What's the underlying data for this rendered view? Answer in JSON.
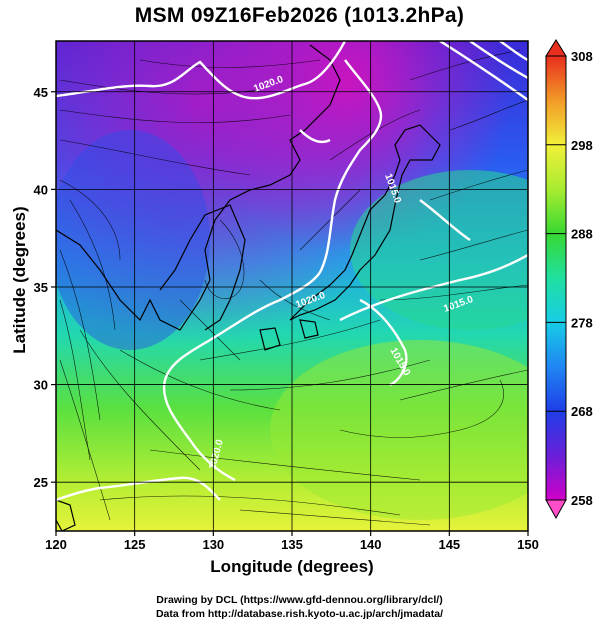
{
  "title": "MSM 09Z16Feb2026 (1013.2hPa)",
  "xlabel": "Longitude (degrees)",
  "ylabel": "Latitude  (degrees)",
  "credit_line1": "Drawing by DCL (https://www.gfd-dennou.org/library/dcl/)",
  "credit_line2": "Data from http://database.rish.kyoto-u.ac.jp/arch/jmadata/",
  "colorbar": {
    "min": 258,
    "max": 308,
    "labels": [
      "308",
      "298",
      "288",
      "278",
      "268",
      "258"
    ],
    "label_values": [
      308,
      298,
      288,
      278,
      268,
      258
    ],
    "colors": [
      "#cc00cc",
      "#7a1fd6",
      "#3a2ed8",
      "#1f55f0",
      "#1f8cf0",
      "#17c4e8",
      "#1ee6c8",
      "#22e07a",
      "#3cd83a",
      "#8ee830",
      "#d2f03a",
      "#f2f03a",
      "#f2c830",
      "#f29a28",
      "#f06020",
      "#e82e1e"
    ]
  },
  "chart_data": {
    "type": "map",
    "xlim": [
      120,
      150
    ],
    "ylim": [
      22.5,
      47.6
    ],
    "xticks": [
      120,
      125,
      130,
      135,
      140,
      145,
      150
    ],
    "xtick_labels": [
      "120",
      "125",
      "130",
      "135",
      "140",
      "145",
      "150"
    ],
    "yticks": [
      25,
      30,
      35,
      40,
      45
    ],
    "ytick_labels": [
      "25",
      "30",
      "35",
      "40",
      "45"
    ],
    "grid": true,
    "contour_labels": [
      "1020.0",
      "1020.0",
      "1015.0",
      "1020.0",
      "1015.0",
      "1015.0"
    ]
  }
}
